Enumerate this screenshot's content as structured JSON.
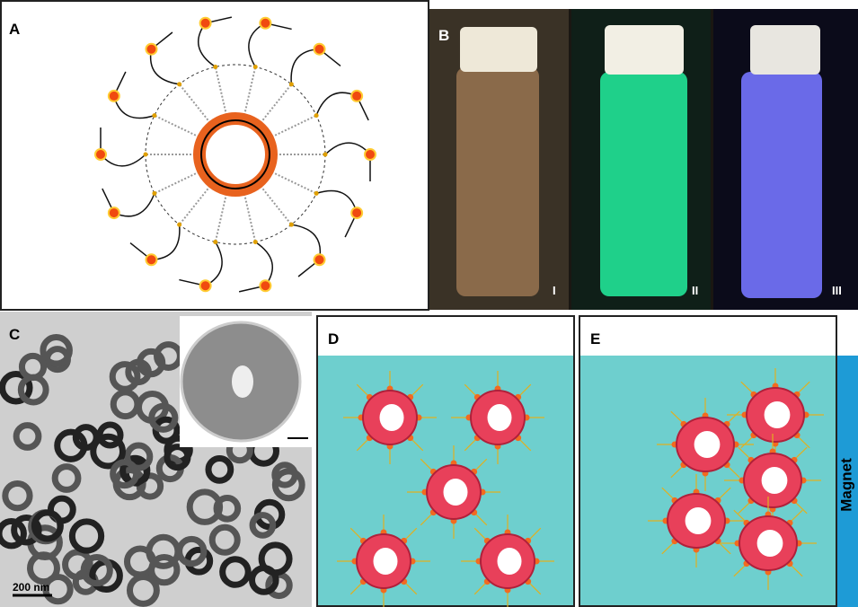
{
  "panels": {
    "a": {
      "label": "A"
    },
    "b": {
      "label": "B",
      "vials": [
        "I",
        "II",
        "III"
      ]
    },
    "c": {
      "label": "C",
      "scale_bar": "200 nm"
    },
    "d": {
      "label": "D"
    },
    "e": {
      "label": "E",
      "magnet": "Magnet"
    }
  }
}
